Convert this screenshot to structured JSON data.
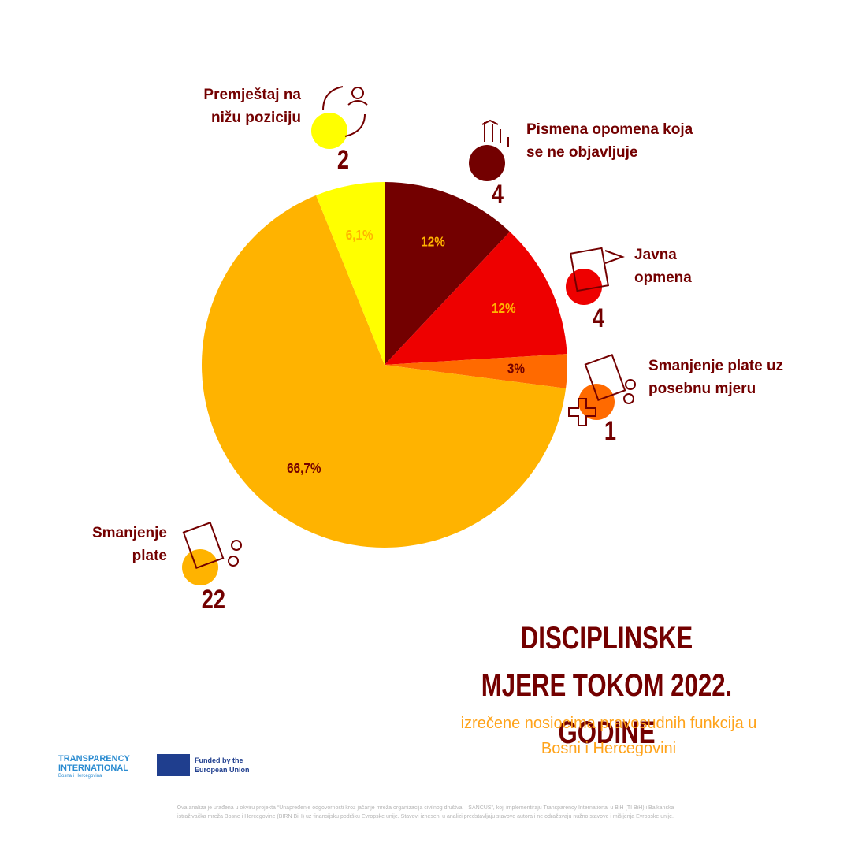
{
  "chart_data": {
    "type": "pie",
    "title": "DISCIPLINSKE MJERE TOKOM 2022. GODINE",
    "subtitle": "izrečene nosiocima pravosudnih funkcija u Bosni i Hercegovini",
    "categories": [
      "Pismena opomena koja se ne objavljuje",
      "Javna opmena",
      "Smanjenje plate uz posebnu mjeru",
      "Smanjenje plate",
      "Premještaj na nižu poziciju"
    ],
    "values": [
      12,
      12,
      3,
      66.7,
      6.1
    ],
    "value_labels": [
      "12%",
      "12%",
      "3%",
      "66,7%",
      "6,1%"
    ],
    "counts": [
      4,
      4,
      1,
      22,
      2
    ],
    "colors": [
      "#730000",
      "#ee0000",
      "#ff6a00",
      "#ffb300",
      "#ffff00"
    ],
    "label_colors": [
      "#ffb300",
      "#ffb300",
      "#730000",
      "#730000",
      "#ffb300"
    ]
  },
  "footer": {
    "logo_ti": "TRANSPARENCY INTERNATIONAL",
    "logo_ti_sub": "Bosna i Hercegovina",
    "logo_eu": "Funded by the European Union",
    "disclaimer": "Ova analiza je urađena u okviru projekta “Unapređenje odgovornosti kroz jačanje mreža organizacija civilnog društva – SANCUS”, koji implementiraju Transparency International u BiH (TI BiH) i Balkanska istraživačka mreža Bosne i Hercegovine (BIRN BiH) uz finansijsku podršku Evropske unije. Stavovi izneseni u analizi predstavljaju stavove autora i ne odražavaju nužno stavove i mišljenja Evropske unije."
  }
}
